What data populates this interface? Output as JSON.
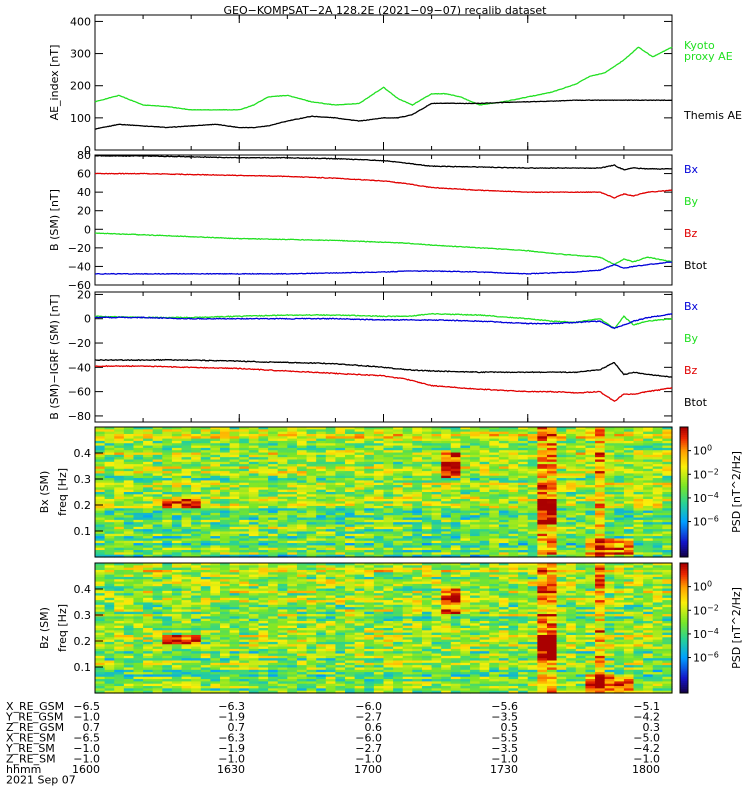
{
  "title": "GEO−KOMPSAT−2A 128.2E (2021−09−07) recalib dataset",
  "colors": {
    "black": "#000000",
    "red": "#e00000",
    "green": "#22e022",
    "blue": "#0000d8"
  },
  "chart_data": [
    {
      "type": "line",
      "ylabel": "AE_index [nT]",
      "ylim": [
        0,
        420
      ],
      "yticks": [
        "0",
        "100",
        "200",
        "300",
        "400"
      ],
      "legend": [
        {
          "label": "Kyoto proxy AE",
          "lines": [
            "Kyoto",
            "proxy AE"
          ],
          "color": "green"
        },
        {
          "label": "Themis AE",
          "lines": [
            "Themis AE"
          ],
          "color": "black"
        }
      ],
      "x": [
        1600,
        1605,
        1610,
        1615,
        1620,
        1625,
        1630,
        1633,
        1636,
        1640,
        1645,
        1650,
        1655,
        1700,
        1703,
        1706,
        1710,
        1713,
        1716,
        1720,
        1725,
        1730,
        1735,
        1740,
        1743,
        1746,
        1750,
        1753,
        1756,
        1800
      ],
      "series": [
        {
          "name": "Kyoto proxy AE",
          "color": "green",
          "values": [
            150,
            170,
            140,
            135,
            125,
            125,
            125,
            140,
            165,
            170,
            150,
            140,
            145,
            195,
            160,
            140,
            175,
            175,
            165,
            140,
            150,
            165,
            180,
            205,
            230,
            240,
            280,
            320,
            290,
            320
          ]
        },
        {
          "name": "Themis AE",
          "color": "black",
          "values": [
            65,
            80,
            75,
            70,
            75,
            80,
            70,
            70,
            75,
            90,
            105,
            100,
            90,
            100,
            100,
            110,
            145,
            145,
            145,
            145,
            148,
            150,
            152,
            155,
            155,
            155,
            155,
            155,
            155,
            155
          ]
        }
      ]
    },
    {
      "type": "line",
      "ylabel": "B (SM) [nT]",
      "ylim": [
        -60,
        80
      ],
      "yticks": [
        "−60",
        "−40",
        "−20",
        "0",
        "20",
        "40",
        "60",
        "80"
      ],
      "legend": [
        {
          "label": "Bx",
          "lines": [
            "Bx"
          ],
          "color": "blue"
        },
        {
          "label": "By",
          "lines": [
            "By"
          ],
          "color": "green"
        },
        {
          "label": "Bz",
          "lines": [
            "Bz"
          ],
          "color": "red"
        },
        {
          "label": "Btot",
          "lines": [
            "Btot"
          ],
          "color": "black"
        }
      ],
      "x": [
        1600,
        1610,
        1620,
        1630,
        1640,
        1650,
        1700,
        1705,
        1710,
        1720,
        1730,
        1735,
        1740,
        1745,
        1748,
        1750,
        1752,
        1755,
        1800
      ],
      "series": [
        {
          "name": "Btot",
          "color": "black",
          "values": [
            79,
            79,
            78,
            77,
            77,
            76,
            74,
            71,
            68,
            67,
            66,
            66,
            66,
            66,
            69,
            64,
            66,
            65,
            65
          ]
        },
        {
          "name": "Bz",
          "color": "red",
          "values": [
            60,
            60,
            59,
            58,
            57,
            55,
            52,
            49,
            45,
            42,
            40,
            40,
            40,
            40,
            34,
            38,
            36,
            40,
            42
          ]
        },
        {
          "name": "By",
          "color": "green",
          "values": [
            -4,
            -6,
            -8,
            -10,
            -11,
            -12,
            -14,
            -15,
            -17,
            -20,
            -23,
            -26,
            -28,
            -30,
            -38,
            -32,
            -35,
            -30,
            -35
          ]
        },
        {
          "name": "Bx",
          "color": "blue",
          "values": [
            -48,
            -48,
            -48,
            -48,
            -48,
            -47,
            -46,
            -45,
            -45,
            -46,
            -48,
            -47,
            -46,
            -44,
            -38,
            -42,
            -40,
            -38,
            -35
          ]
        }
      ]
    },
    {
      "type": "line",
      "ylabel": "B (SM)−IGRF (SM) [nT]",
      "ylim": [
        -85,
        22
      ],
      "yticks": [
        "−80",
        "−60",
        "−40",
        "−20",
        "0",
        "20"
      ],
      "legend": [
        {
          "label": "Bx",
          "lines": [
            "Bx"
          ],
          "color": "blue"
        },
        {
          "label": "By",
          "lines": [
            "By"
          ],
          "color": "green"
        },
        {
          "label": "Bz",
          "lines": [
            "Bz"
          ],
          "color": "red"
        },
        {
          "label": "Btot",
          "lines": [
            "Btot"
          ],
          "color": "black"
        }
      ],
      "x": [
        1600,
        1610,
        1620,
        1630,
        1640,
        1650,
        1700,
        1705,
        1710,
        1720,
        1730,
        1735,
        1740,
        1745,
        1748,
        1750,
        1752,
        1755,
        1800
      ],
      "series": [
        {
          "name": "By",
          "color": "green",
          "values": [
            2,
            1,
            1,
            2,
            3,
            3,
            2,
            2,
            4,
            3,
            0,
            -2,
            -3,
            0,
            -8,
            2,
            -5,
            -2,
            0
          ]
        },
        {
          "name": "Bx",
          "color": "blue",
          "values": [
            1,
            1,
            0,
            0,
            0,
            0,
            -1,
            -1,
            -1,
            -2,
            -4,
            -4,
            -3,
            -2,
            -8,
            -5,
            -2,
            1,
            4
          ]
        },
        {
          "name": "Btot",
          "color": "black",
          "values": [
            -34,
            -34,
            -34,
            -35,
            -36,
            -37,
            -40,
            -42,
            -43,
            -44,
            -44,
            -44,
            -44,
            -42,
            -36,
            -46,
            -44,
            -46,
            -48
          ]
        },
        {
          "name": "Bz",
          "color": "red",
          "values": [
            -39,
            -39,
            -40,
            -41,
            -43,
            -45,
            -47,
            -50,
            -55,
            -58,
            -60,
            -60,
            -61,
            -60,
            -68,
            -62,
            -62,
            -60,
            -57
          ]
        }
      ]
    },
    {
      "type": "heatmap",
      "component": "Bx (SM)",
      "ylabel": "freq [Hz]",
      "yticks": [
        "0.1",
        "0.2",
        "0.3",
        "0.4"
      ],
      "ylim": [
        0,
        0.5
      ],
      "colorbar": {
        "label": "PSD [nT^2/Hz]",
        "range": [
          -9,
          2
        ],
        "scale": "log10",
        "ticks": [
          "10^0",
          "10^-2",
          "10^-4",
          "10^-6"
        ]
      }
    },
    {
      "type": "heatmap",
      "component": "Bz (SM)",
      "ylabel": "freq [Hz]",
      "yticks": [
        "0.1",
        "0.2",
        "0.3",
        "0.4"
      ],
      "ylim": [
        0,
        0.5
      ],
      "colorbar": {
        "label": "PSD [nT^2/Hz]",
        "range": [
          -9,
          2
        ],
        "scale": "log10",
        "ticks": [
          "10^0",
          "10^-2",
          "10^-4",
          "10^-6"
        ]
      }
    }
  ],
  "orbit_table": {
    "rows": [
      {
        "label": "X_RE_GSM",
        "values": [
          "−6.5",
          "−6.3",
          "−6.0",
          "−5.6",
          "−5.1"
        ]
      },
      {
        "label": "Y_RE_GSM",
        "values": [
          "−1.0",
          "−1.9",
          "−2.7",
          "−3.5",
          "−4.2"
        ]
      },
      {
        "label": "Z_RE_GSM",
        "values": [
          "0.7",
          "0.7",
          "0.6",
          "0.5",
          "0.3"
        ]
      },
      {
        "label": "X_RE_SM",
        "values": [
          "−6.5",
          "−6.3",
          "−6.0",
          "−5.5",
          "−5.0"
        ]
      },
      {
        "label": "Y_RE_SM",
        "values": [
          "−1.0",
          "−1.9",
          "−2.7",
          "−3.5",
          "−4.2"
        ]
      },
      {
        "label": "Z_RE_SM",
        "values": [
          "−1.0",
          "−1.0",
          "−1.0",
          "−1.0",
          "−1.0"
        ]
      },
      {
        "label": "hhmm",
        "values": [
          "1600",
          "1630",
          "1700",
          "1730",
          "1800"
        ]
      }
    ],
    "date": "2021 Sep 07"
  }
}
